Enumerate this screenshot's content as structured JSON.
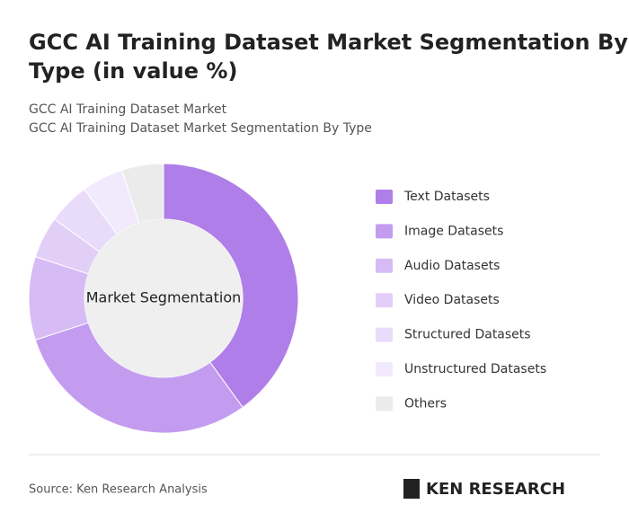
{
  "chart_data": {
    "type": "donut",
    "title": "GCC AI Training Dataset Market Segmentation By Type (in value %)",
    "subtitle": [
      "GCC AI Training Dataset Market",
      "GCC AI Training Dataset Market Segmentation By Type"
    ],
    "center_label": "Market Segmentation",
    "categories": [
      "Text Datasets",
      "Image Datasets",
      "Audio Datasets",
      "Video Datasets",
      "Structured Datasets",
      "Unstructured Datasets",
      "Others"
    ],
    "values": [
      40,
      30,
      10,
      5,
      5,
      5,
      5
    ],
    "colors": [
      "#b07ee8",
      "#c39cf0",
      "#d6bbf5",
      "#e2cff8",
      "#e9dcfa",
      "#f1eafc",
      "#ebebeb"
    ],
    "source": "Source: Ken Research Analysis",
    "logo": "KEN RESEARCH"
  }
}
